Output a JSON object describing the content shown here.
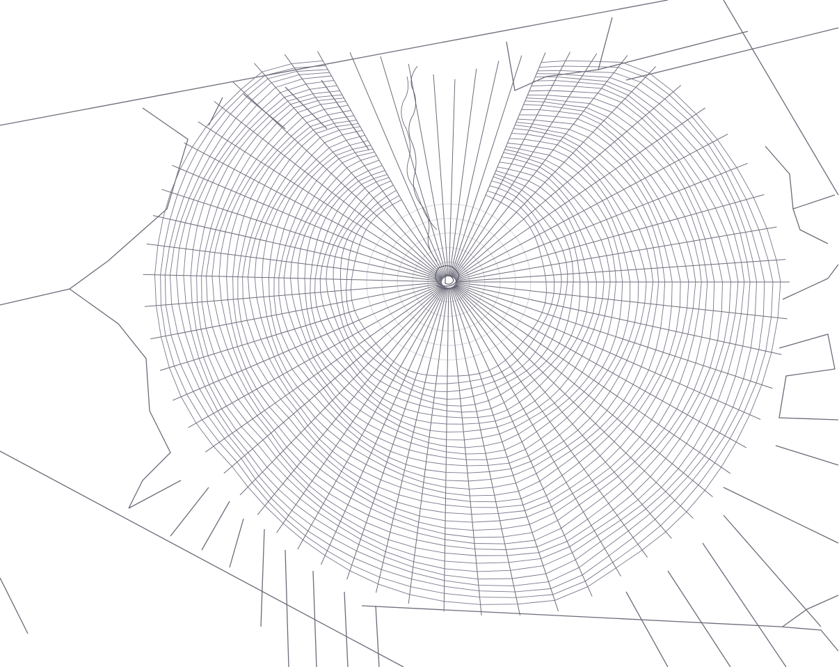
{
  "image": {
    "subject": "",
    "colors": {
      "background": "#ffffff",
      "silk": "#6b6a78",
      "spiral": "#77768a"
    }
  }
}
